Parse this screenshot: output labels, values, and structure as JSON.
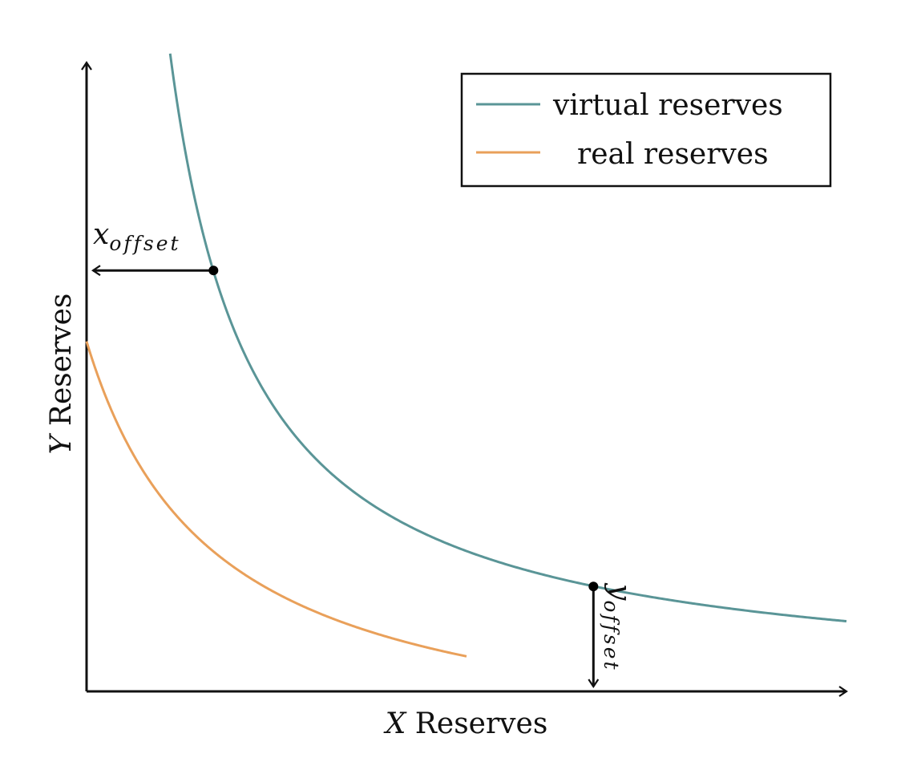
{
  "chart_data": {
    "type": "line",
    "title": "",
    "xlabel_var": "X",
    "xlabel_text": "Reserves",
    "ylabel_var": "Y",
    "ylabel_text": "Reserves",
    "ticks": "none",
    "grid": false,
    "xlim": [
      0,
      10
    ],
    "ylim": [
      0,
      10
    ],
    "legend": {
      "position": "top-right"
    },
    "series": [
      {
        "name": "virtual reserves",
        "color": "#5a9597",
        "k": 11.1,
        "x_from": 1.1,
        "x_to": 10
      },
      {
        "name": "real reserves",
        "color": "#e9a05a",
        "k": 11.1,
        "x_shift": 1.67,
        "y_shift": 1.11,
        "x_from": 0,
        "x_to": 5.0
      }
    ],
    "annotations": [
      {
        "label_base": "x",
        "label_sub": "offset",
        "point": [
          1.67,
          6.66
        ],
        "arrow": "left-to-axis"
      },
      {
        "label_base": "y",
        "label_sub": "offset",
        "point": [
          6.67,
          1.66
        ],
        "arrow": "down-to-axis"
      }
    ]
  }
}
